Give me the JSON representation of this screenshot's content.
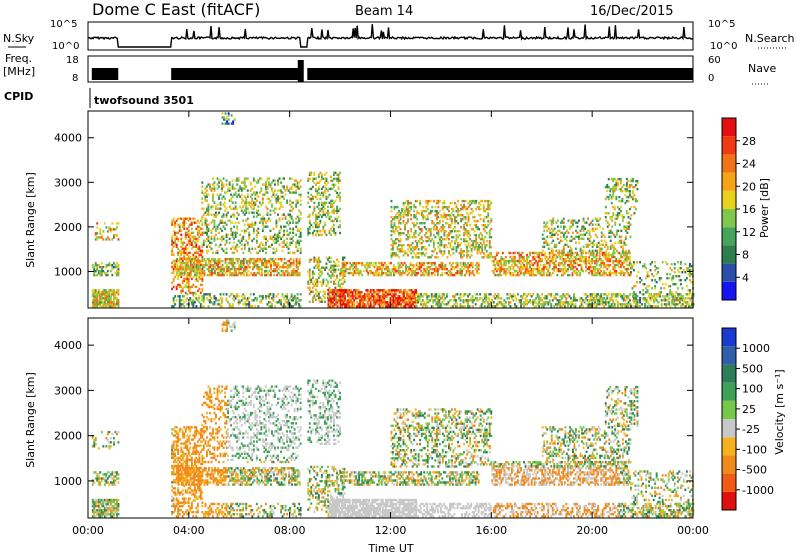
{
  "header": {
    "radar": "Dome C East (fitACF)",
    "beam": "Beam 14",
    "date": "16/Dec/2015"
  },
  "strips": {
    "nsky_label": "N.Sky",
    "nsky_ticks": [
      "10^5",
      "10^0"
    ],
    "nsearch_label": "N.Search",
    "nsearch_ticks": [
      "10^5",
      "10^0"
    ],
    "freq_label": "Freq.",
    "freq_unit": "[MHz]",
    "freq_ticks": [
      "18",
      "8"
    ],
    "nave_label": "Nave",
    "nave_ticks": [
      "60",
      "0"
    ],
    "cpid_label": "CPID",
    "cpid_value": "twofsound 3501"
  },
  "chart_data": [
    {
      "type": "heatmap",
      "title": "",
      "xlabel": "Time UT",
      "ylabel": "Slant Range [km]",
      "x_ticks": [
        "00:00",
        "04:00",
        "08:00",
        "12:00",
        "16:00",
        "20:00",
        "00:00"
      ],
      "xlim_hours": [
        0,
        24
      ],
      "y_ticks": [
        1000,
        2000,
        3000,
        4000
      ],
      "ylim": [
        180,
        4600
      ],
      "colorbar": {
        "label": "Power [dB]",
        "ticks": [
          "4",
          "8",
          "12",
          "16",
          "20",
          "24",
          "28"
        ],
        "range": [
          0,
          32
        ],
        "colors": [
          "#1515f0",
          "#2a4ea8",
          "#2e7d4f",
          "#45a35a",
          "#7fc84d",
          "#e8d21c",
          "#f5a318",
          "#f07316",
          "#f03a12",
          "#e60f0f"
        ]
      }
    },
    {
      "type": "heatmap",
      "title": "",
      "xlabel": "Time UT",
      "ylabel": "Slant Range [km]",
      "x_ticks": [
        "00:00",
        "04:00",
        "08:00",
        "12:00",
        "16:00",
        "20:00",
        "00:00"
      ],
      "xlim_hours": [
        0,
        24
      ],
      "y_ticks": [
        1000,
        2000,
        3000,
        4000
      ],
      "ylim": [
        180,
        4600
      ],
      "colorbar": {
        "label": "Velocity [m s⁻¹]",
        "ticks": [
          "1000",
          "500",
          "100",
          "25",
          "-25",
          "-100",
          "-500",
          "-1000"
        ],
        "range": [
          -1500,
          1500
        ],
        "colors": [
          "#e01010",
          "#f05a12",
          "#f08a1a",
          "#f5b21e",
          "#c8c8c8",
          "#75c84a",
          "#3fa058",
          "#2e7d5a",
          "#2e5fa8",
          "#1a3ad0"
        ]
      }
    }
  ]
}
